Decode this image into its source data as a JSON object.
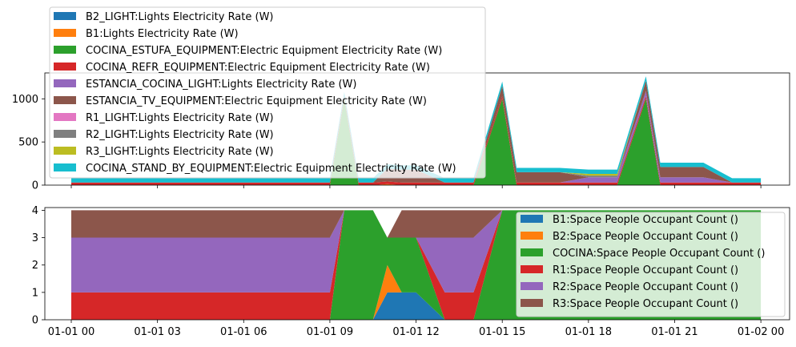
{
  "chart_data": [
    {
      "type": "area",
      "stacked": true,
      "xlim": [
        -0.92,
        25.0
      ],
      "ylim": [
        0,
        1300
      ],
      "xticks": [
        0,
        3,
        6,
        9,
        12,
        15,
        18,
        21,
        24
      ],
      "xtick_labels": [
        "01-01 00",
        "01-01 03",
        "01-01 06",
        "01-01 09",
        "01-01 12",
        "01-01 15",
        "01-01 18",
        "01-01 21",
        "01-02 00"
      ],
      "yticks": [
        0,
        500,
        1000
      ],
      "ytick_labels": [
        "0",
        "500",
        "1000"
      ],
      "legend_position": "upper-left, extending above the axes",
      "x": [
        0,
        1,
        2,
        3,
        4,
        5,
        6,
        7,
        8,
        9,
        9.5,
        10,
        10.5,
        11,
        11.5,
        12,
        13,
        14,
        15,
        15.5,
        16,
        17,
        18,
        19,
        20,
        20.5,
        21,
        22,
        23,
        24
      ],
      "series": [
        {
          "name": "B2_LIGHT:Lights Electricity Rate (W)",
          "color": "#1f77b4",
          "values": [
            0,
            0,
            0,
            0,
            0,
            0,
            0,
            0,
            0,
            0,
            0,
            0,
            0,
            0,
            0,
            0,
            0,
            0,
            0,
            0,
            0,
            0,
            0,
            0,
            0,
            0,
            0,
            0,
            0,
            0
          ]
        },
        {
          "name": "B1:Lights Electricity Rate (W)",
          "color": "#ff7f0e",
          "values": [
            0,
            0,
            0,
            0,
            0,
            0,
            0,
            0,
            0,
            0,
            0,
            0,
            0,
            12,
            0,
            0,
            0,
            0,
            0,
            0,
            0,
            0,
            0,
            0,
            0,
            0,
            0,
            0,
            0,
            0
          ]
        },
        {
          "name": "COCINA_ESTUFA_EQUIPMENT:Electric Equipment Electricity Rate (W)",
          "color": "#2ca02c",
          "values": [
            0,
            0,
            0,
            0,
            0,
            0,
            0,
            0,
            0,
            0,
            1000,
            0,
            0,
            0,
            0,
            0,
            0,
            0,
            1000,
            0,
            0,
            0,
            0,
            0,
            1000,
            0,
            0,
            0,
            0,
            0
          ]
        },
        {
          "name": "COCINA_REFR_EQUIPMENT:Electric Equipment Electricity Rate (W)",
          "color": "#d62728",
          "values": [
            30,
            30,
            30,
            30,
            30,
            30,
            30,
            30,
            30,
            30,
            30,
            30,
            30,
            30,
            30,
            30,
            30,
            30,
            30,
            30,
            30,
            30,
            30,
            30,
            30,
            30,
            30,
            30,
            30,
            30
          ]
        },
        {
          "name": "ESTANCIA_COCINA_LIGHT:Lights Electricity Rate (W)",
          "color": "#9467bd",
          "values": [
            0,
            0,
            0,
            0,
            0,
            0,
            0,
            0,
            0,
            0,
            0,
            0,
            0,
            0,
            0,
            0,
            0,
            0,
            0,
            0,
            0,
            0,
            60,
            60,
            60,
            60,
            60,
            60,
            0,
            0
          ]
        },
        {
          "name": "ESTANCIA_TV_EQUIPMENT:Electric Equipment Electricity Rate (W)",
          "color": "#8c564b",
          "values": [
            0,
            0,
            0,
            0,
            0,
            0,
            0,
            0,
            0,
            0,
            0,
            0,
            0,
            150,
            150,
            150,
            0,
            0,
            120,
            120,
            120,
            120,
            0,
            0,
            120,
            120,
            120,
            120,
            0,
            0
          ]
        },
        {
          "name": "R1_LIGHT:Lights Electricity Rate (W)",
          "color": "#e377c2",
          "values": [
            0,
            0,
            0,
            0,
            0,
            0,
            0,
            0,
            0,
            0,
            0,
            0,
            0,
            0,
            0,
            0,
            0,
            0,
            0,
            0,
            0,
            0,
            0,
            0,
            0,
            0,
            0,
            0,
            0,
            0
          ]
        },
        {
          "name": "R2_LIGHT:Lights Electricity Rate (W)",
          "color": "#7f7f7f",
          "values": [
            0,
            0,
            0,
            0,
            0,
            0,
            0,
            0,
            0,
            0,
            0,
            0,
            0,
            0,
            0,
            0,
            0,
            0,
            0,
            0,
            0,
            0,
            20,
            20,
            0,
            0,
            0,
            0,
            0,
            0
          ]
        },
        {
          "name": "R3_LIGHT:Lights Electricity Rate (W)",
          "color": "#bcbd22",
          "values": [
            0,
            0,
            0,
            0,
            0,
            0,
            0,
            0,
            0,
            0,
            0,
            0,
            0,
            0,
            0,
            0,
            0,
            0,
            0,
            0,
            0,
            0,
            20,
            20,
            0,
            0,
            0,
            0,
            0,
            0
          ]
        },
        {
          "name": "COCINA_STAND_BY_EQUIPMENT:Electric Equipment Electricity Rate (W)",
          "color": "#17becf",
          "values": [
            50,
            50,
            50,
            50,
            50,
            50,
            50,
            50,
            50,
            50,
            50,
            50,
            50,
            50,
            50,
            50,
            50,
            50,
            50,
            50,
            50,
            50,
            50,
            50,
            50,
            50,
            50,
            50,
            50,
            50
          ]
        }
      ]
    },
    {
      "type": "area",
      "stacked": true,
      "xlim": [
        -0.92,
        25.0
      ],
      "ylim": [
        0,
        4.1
      ],
      "xticks": [
        0,
        3,
        6,
        9,
        12,
        15,
        18,
        21,
        24
      ],
      "xtick_labels": [
        "01-01 00",
        "01-01 03",
        "01-01 06",
        "01-01 09",
        "01-01 12",
        "01-01 15",
        "01-01 18",
        "01-01 21",
        "01-02 00"
      ],
      "yticks": [
        0,
        1,
        2,
        3,
        4
      ],
      "ytick_labels": [
        "0",
        "1",
        "2",
        "3",
        "4"
      ],
      "legend_position": "upper-right",
      "x": [
        0,
        1,
        2,
        3,
        4,
        5,
        6,
        7,
        8,
        9,
        9.5,
        10,
        10.5,
        11,
        11.5,
        12,
        13,
        14,
        15,
        15.5,
        16,
        17,
        18,
        19,
        20,
        20.5,
        21,
        22,
        23,
        24
      ],
      "series": [
        {
          "name": "B1:Space People Occupant Count ()",
          "color": "#1f77b4",
          "values": [
            0,
            0,
            0,
            0,
            0,
            0,
            0,
            0,
            0,
            0,
            0,
            0,
            0,
            1,
            1,
            1,
            0,
            0,
            0,
            0,
            0,
            0,
            0,
            0,
            0,
            0,
            0,
            0,
            0,
            0
          ]
        },
        {
          "name": "B2:Space People Occupant Count ()",
          "color": "#ff7f0e",
          "values": [
            0,
            0,
            0,
            0,
            0,
            0,
            0,
            0,
            0,
            0,
            0,
            0,
            0,
            1,
            0,
            0,
            0,
            0,
            0,
            0,
            0,
            0,
            0,
            0,
            0,
            0,
            0,
            0,
            0,
            0
          ]
        },
        {
          "name": "COCINA:Space People Occupant Count ()",
          "color": "#2ca02c",
          "values": [
            0,
            0,
            0,
            0,
            0,
            0,
            0,
            0,
            0,
            0,
            4,
            4,
            4,
            1,
            2,
            2,
            0,
            0,
            4,
            4,
            4,
            4,
            4,
            4,
            4,
            4,
            4,
            4,
            4,
            4
          ]
        },
        {
          "name": "R1:Space People Occupant Count ()",
          "color": "#d62728",
          "values": [
            1,
            1,
            1,
            1,
            1,
            1,
            1,
            1,
            1,
            1,
            0,
            0,
            0,
            0,
            0,
            0,
            1,
            1,
            0,
            0,
            0,
            0,
            0,
            0,
            0,
            0,
            0,
            0,
            0,
            0
          ]
        },
        {
          "name": "R2:Space People Occupant Count ()",
          "color": "#9467bd",
          "values": [
            2,
            2,
            2,
            2,
            2,
            2,
            2,
            2,
            2,
            2,
            0,
            0,
            0,
            0,
            0,
            0,
            2,
            2,
            0,
            0,
            0,
            0,
            0,
            0,
            0,
            0,
            0,
            0,
            0,
            0
          ]
        },
        {
          "name": "R3:Space People Occupant Count ()",
          "color": "#8c564b",
          "values": [
            1,
            1,
            1,
            1,
            1,
            1,
            1,
            1,
            1,
            1,
            0,
            0,
            0,
            0,
            1,
            1,
            1,
            1,
            0,
            0,
            0,
            0,
            0,
            0,
            0,
            0,
            0,
            0,
            0,
            0
          ]
        }
      ]
    }
  ]
}
